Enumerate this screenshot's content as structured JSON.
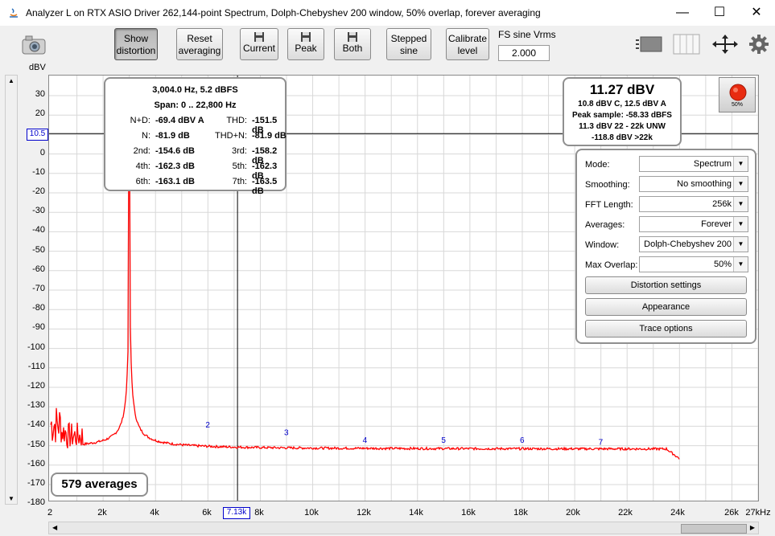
{
  "window": {
    "title": "Analyzer L on RTX ASIO Driver 262,144-point Spectrum, Dolph-Chebyshev 200 window, 50% overlap, forever averaging",
    "minimize": "—",
    "maximize": "☐",
    "close": "✕"
  },
  "toolbar": {
    "show_distortion": [
      "Show",
      "distortion"
    ],
    "reset_averaging": [
      "Reset",
      "averaging"
    ],
    "current": "Current",
    "peak": "Peak",
    "both": "Both",
    "stepped_sine": [
      "Stepped",
      "sine"
    ],
    "calibrate_level": [
      "Calibrate",
      "level"
    ],
    "fs_sine_label": "FS sine Vrms",
    "fs_sine_value": "2.000"
  },
  "axes": {
    "y_unit": "dBV",
    "y_ticks": [
      "30",
      "20",
      "10",
      "0",
      "-10",
      "-20",
      "-30",
      "-40",
      "-50",
      "-60",
      "-70",
      "-80",
      "-90",
      "-100",
      "-110",
      "-120",
      "-130",
      "-140",
      "-150",
      "-160",
      "-170",
      "-180"
    ],
    "x_ticks": [
      "2",
      "2k",
      "4k",
      "6k",
      "8k",
      "10k",
      "12k",
      "14k",
      "16k",
      "18k",
      "20k",
      "22k",
      "24k",
      "26k",
      "27kHz"
    ],
    "cursor_y_label": "10.5",
    "cursor_x_label": "7.13k"
  },
  "measurements": {
    "freq_line": "3,004.0 Hz, 5.2 dBFS",
    "span_line": "Span: 0 .. 22,800 Hz",
    "rows": [
      {
        "l1": "N+D:",
        "v1": "-69.4 dBV A",
        "l2": "THD:",
        "v2": "-151.5 dB"
      },
      {
        "l1": "N:",
        "v1": "-81.9 dB",
        "l2": "THD+N:",
        "v2": "-81.9 dB"
      },
      {
        "l1": "2nd:",
        "v1": "-154.6 dB",
        "l2": "3rd:",
        "v2": "-158.2 dB"
      },
      {
        "l1": "4th:",
        "v1": "-162.3 dB",
        "l2": "5th:",
        "v2": "-162.3 dB"
      },
      {
        "l1": "6th:",
        "v1": "-163.1 dB",
        "l2": "7th:",
        "v2": "-163.5 dB"
      }
    ]
  },
  "level": {
    "main": "11.27 dBV",
    "line1": "10.8 dBV C, 12.5 dBV A",
    "line2": "Peak sample: -58.33 dBFS",
    "line3": "11.3 dBV 22 - 22k UNW",
    "line4": "-118.8 dBV >22k"
  },
  "record_button": {
    "label": "50%"
  },
  "settings": {
    "mode_label": "Mode:",
    "mode_value": "Spectrum",
    "smoothing_label": "Smoothing:",
    "smoothing_value": "No  smoothing",
    "fft_label": "FFT Length:",
    "fft_value": "256k",
    "averages_label": "Averages:",
    "averages_value": "Forever",
    "window_label": "Window:",
    "window_value": "Dolph-Chebyshev 200",
    "overlap_label": "Max Overlap:",
    "overlap_value": "50%",
    "distortion_settings": "Distortion settings",
    "appearance": "Appearance",
    "trace_options": "Trace options"
  },
  "averages_badge": "579 averages",
  "harmonic_labels": [
    "2",
    "3",
    "4",
    "5",
    "6",
    "7"
  ],
  "colors": {
    "trace": "#ff0000",
    "grid": "#d8d8d8",
    "cursor": "#000000",
    "harmonic_label": "#0000cc"
  }
}
